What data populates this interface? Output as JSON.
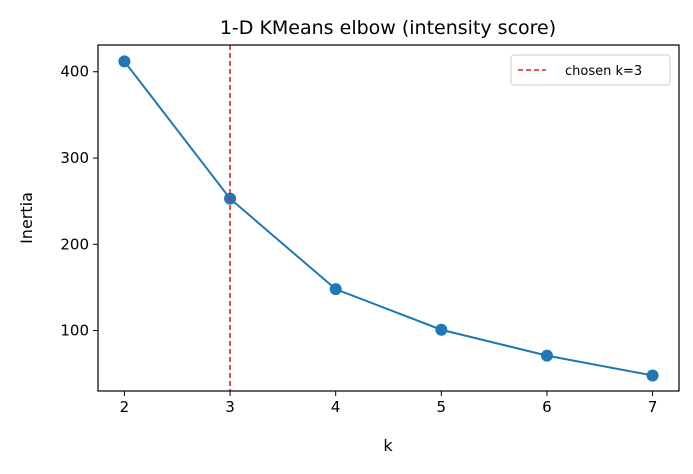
{
  "chart_data": {
    "type": "line",
    "title": "1-D KMeans elbow (intensity score)",
    "xlabel": "k",
    "ylabel": "Inertia",
    "x": [
      2,
      3,
      4,
      5,
      6,
      7
    ],
    "values": [
      412,
      253,
      148,
      101,
      71,
      48
    ],
    "xlim": [
      1.75,
      7.25
    ],
    "ylim": [
      30,
      431
    ],
    "xticks": [
      "2",
      "3",
      "4",
      "5",
      "6",
      "7"
    ],
    "yticks": [
      "100",
      "200",
      "300",
      "400"
    ],
    "grid": false,
    "line_color": "#1f77b4",
    "marker": "circle",
    "vline": {
      "x": 3,
      "color": "#d62728",
      "style": "dashed",
      "label": "chosen k=3"
    },
    "legend": {
      "position": "top-right",
      "entries": [
        "chosen k=3"
      ]
    }
  }
}
